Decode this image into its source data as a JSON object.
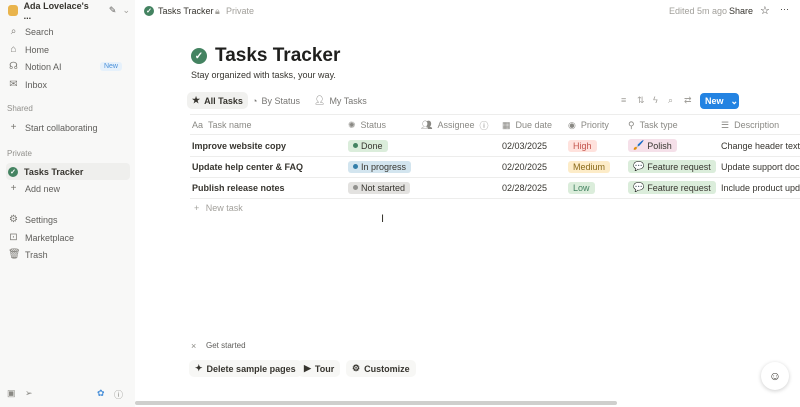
{
  "sidebar": {
    "workspace": "Ada Lovelace's ...",
    "items": [
      {
        "label": "Search",
        "icon": "search-icon"
      },
      {
        "label": "Home",
        "icon": "home-icon"
      },
      {
        "label": "Notion AI",
        "icon": "notion-ai-icon",
        "badge": "New"
      },
      {
        "label": "Inbox",
        "icon": "inbox-icon"
      }
    ],
    "shared_label": "Shared",
    "start_collab": "Start collaborating",
    "private_label": "Private",
    "tasks_tracker": "Tasks Tracker",
    "add_new": "Add new",
    "bottom": [
      {
        "label": "Settings",
        "icon": "gear-icon"
      },
      {
        "label": "Marketplace",
        "icon": "marketplace-icon"
      },
      {
        "label": "Trash",
        "icon": "trash-icon"
      }
    ]
  },
  "topbar": {
    "page": "Tasks Tracker",
    "privacy": "Private",
    "edited": "Edited 5m ago",
    "share": "Share"
  },
  "page": {
    "title": "Tasks Tracker",
    "subtitle": "Stay organized with tasks, your way."
  },
  "views": [
    {
      "label": "All Tasks",
      "icon": "star-icon"
    },
    {
      "label": "By Status",
      "icon": "status-icon"
    },
    {
      "label": "My Tasks",
      "icon": "person-icon"
    }
  ],
  "toolbar": {
    "new": "New"
  },
  "columns": [
    "Task name",
    "Status",
    "Assignee",
    "Due date",
    "Priority",
    "Task type",
    "Description"
  ],
  "rows": [
    {
      "name": "Improve website copy",
      "status": "Done",
      "due": "02/03/2025",
      "priority": "High",
      "type": "Polish",
      "type_icon": "🖌️",
      "desc": "Change header text"
    },
    {
      "name": "Update help center & FAQ",
      "status": "In progress",
      "due": "02/20/2025",
      "priority": "Medium",
      "type": "Feature request",
      "type_icon": "💬",
      "desc": "Update support doc"
    },
    {
      "name": "Publish release notes",
      "status": "Not started",
      "due": "02/28/2025",
      "priority": "Low",
      "type": "Feature request",
      "type_icon": "💬",
      "desc": "Include product upd"
    }
  ],
  "new_task": "New task",
  "get_started": {
    "label": "Get started",
    "buttons": [
      "Delete sample pages",
      "Tour",
      "Customize"
    ]
  },
  "colors": {
    "done": "#448361",
    "in_progress": "#337ea9",
    "not_started": "#91918e",
    "high": "#ffe2dd",
    "medium": "#fdecc8",
    "low": "#dbeddb",
    "accent": "#2383e2"
  }
}
